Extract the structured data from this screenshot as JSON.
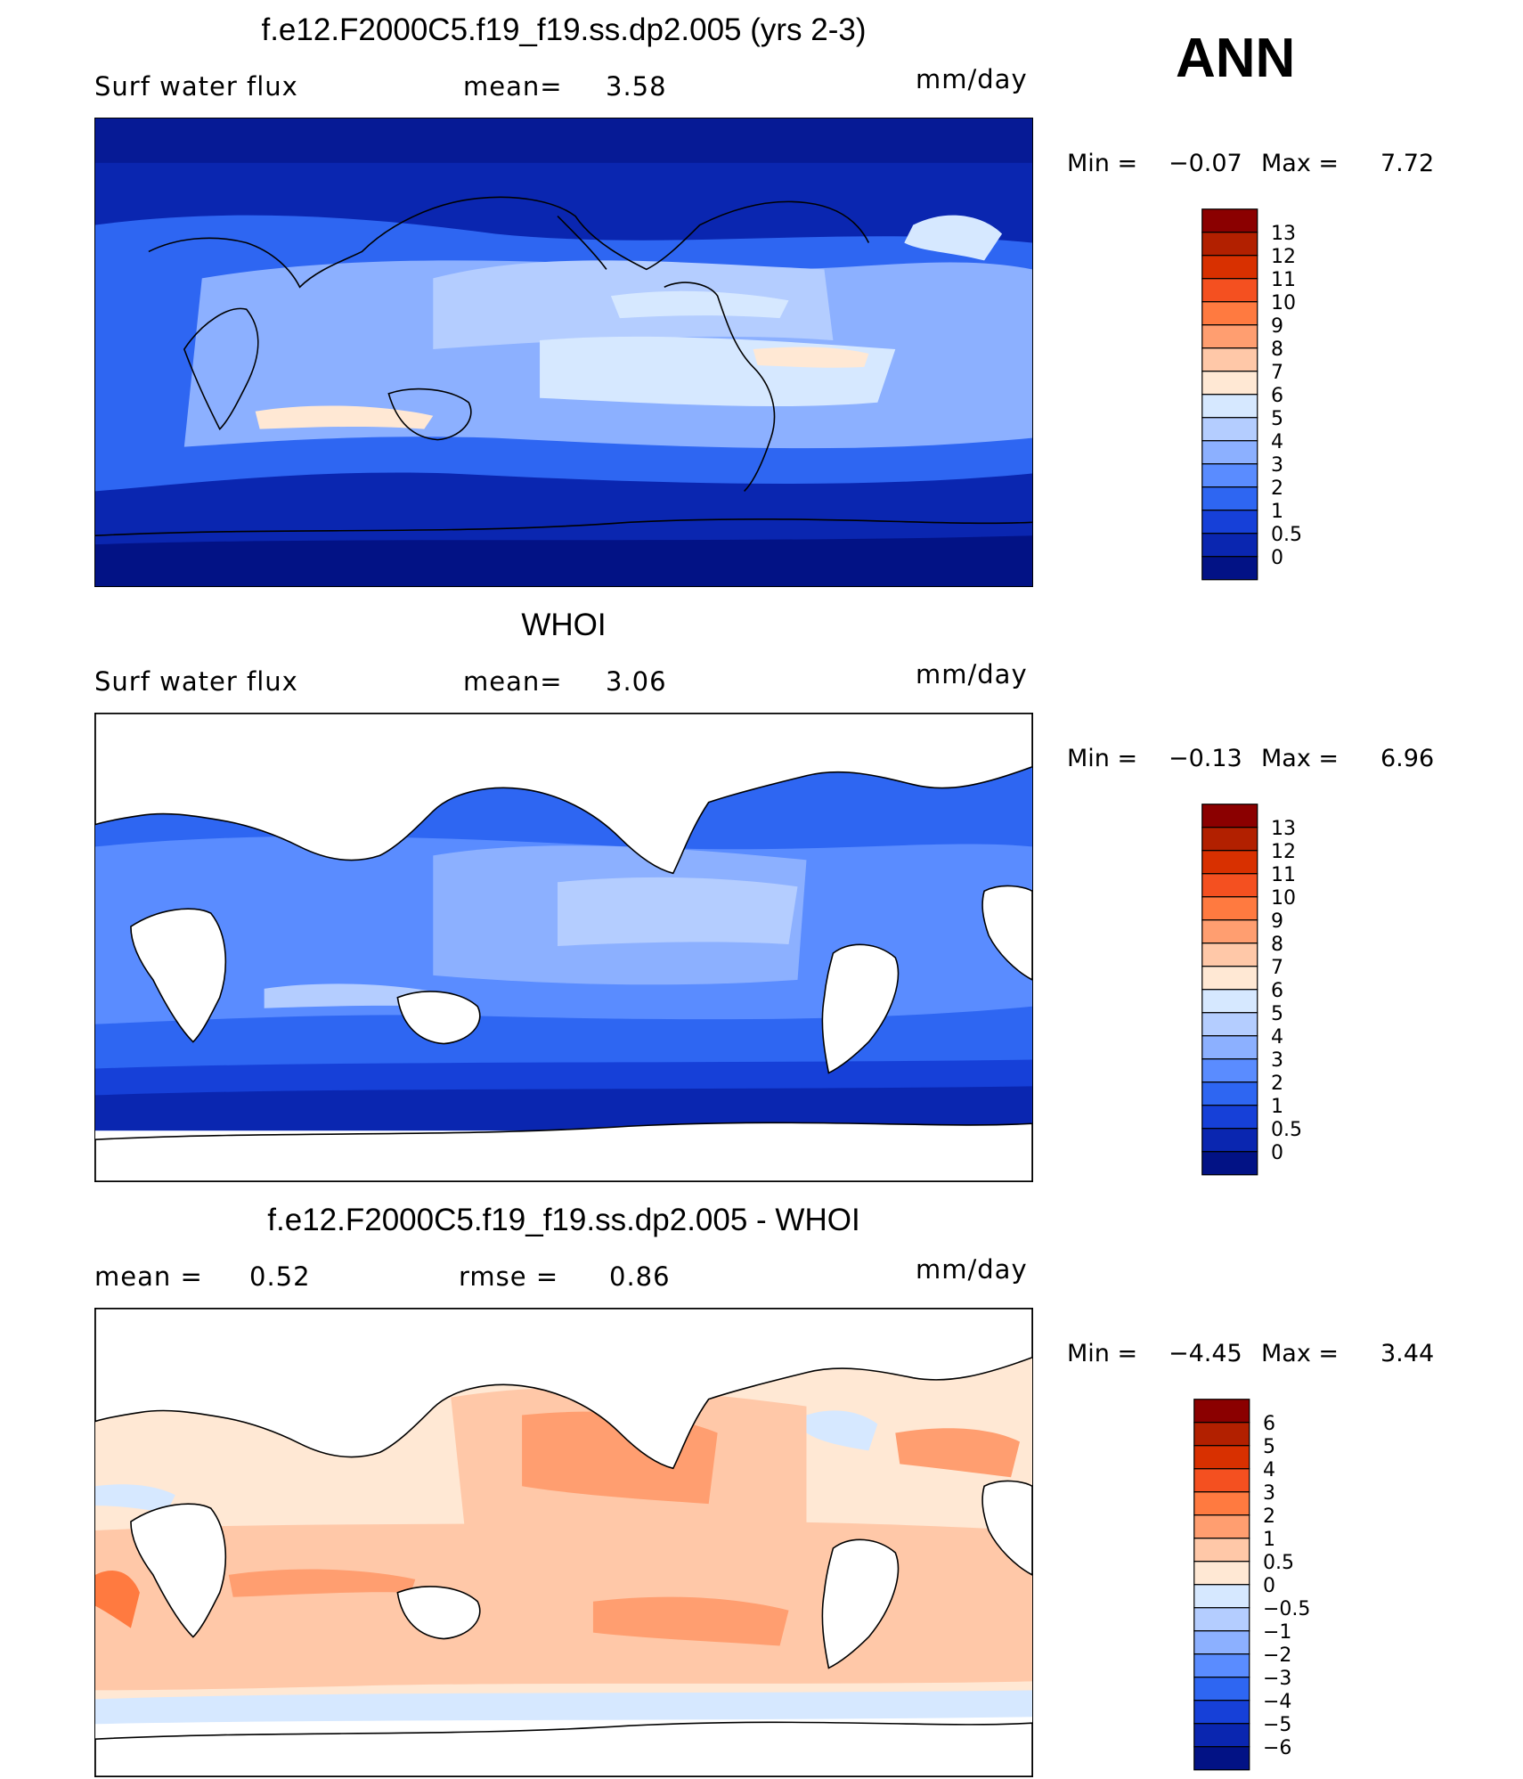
{
  "season": "ANN",
  "panels": [
    {
      "id": "model",
      "title": "f.e12.F2000C5.f19_f19.ss.dp2.005 (yrs 2-3)",
      "left_label": "Surf  water  flux",
      "stat1_label": "mean=",
      "stat1_value": "3.58",
      "stat2_label": "",
      "stat2_value": "",
      "units": "mm/day",
      "min_label": "Min  =",
      "min_value": "−0.07",
      "max_label": "Max  =",
      "max_value": "7.72",
      "colorbar_levels": [
        "13",
        "12",
        "11",
        "10",
        "9",
        "8",
        "7",
        "6",
        "5",
        "4",
        "3",
        "2",
        "1",
        "0.5",
        "0"
      ],
      "colorbar_colors": [
        "#8b0000",
        "#b22000",
        "#d83000",
        "#f45020",
        "#ff7a40",
        "#ff9e70",
        "#ffc8a8",
        "#ffe8d4",
        "#d6e8ff",
        "#b4cdff",
        "#8cb0ff",
        "#5a8cff",
        "#2e66f2",
        "#1640d8",
        "#0a26b0",
        "#021285"
      ]
    },
    {
      "id": "obs",
      "title": "WHOI",
      "left_label": "Surf  water  flux",
      "stat1_label": "mean=",
      "stat1_value": "3.06",
      "stat2_label": "",
      "stat2_value": "",
      "units": "mm/day",
      "min_label": "Min  =",
      "min_value": "−0.13",
      "max_label": "Max  =",
      "max_value": "6.96",
      "colorbar_levels": [
        "13",
        "12",
        "11",
        "10",
        "9",
        "8",
        "7",
        "6",
        "5",
        "4",
        "3",
        "2",
        "1",
        "0.5",
        "0"
      ],
      "colorbar_colors": [
        "#8b0000",
        "#b22000",
        "#d83000",
        "#f45020",
        "#ff7a40",
        "#ff9e70",
        "#ffc8a8",
        "#ffe8d4",
        "#d6e8ff",
        "#b4cdff",
        "#8cb0ff",
        "#5a8cff",
        "#2e66f2",
        "#1640d8",
        "#0a26b0",
        "#021285"
      ]
    },
    {
      "id": "diff",
      "title": "f.e12.F2000C5.f19_f19.ss.dp2.005 - WHOI",
      "left_label": "mean  =",
      "stat1_label": "0.52",
      "stat1_value": "",
      "stat2_label": "rmse  =",
      "stat2_value": "0.86",
      "units": "mm/day",
      "min_label": "Min  =",
      "min_value": "−4.45",
      "max_label": "Max  =",
      "max_value": "3.44",
      "colorbar_levels": [
        "6",
        "5",
        "4",
        "3",
        "2",
        "1",
        "0.5",
        "0",
        "−0.5",
        "−1",
        "−2",
        "−3",
        "−4",
        "−5",
        "−6"
      ],
      "colorbar_colors": [
        "#8b0000",
        "#b22000",
        "#d83000",
        "#f45020",
        "#ff7a40",
        "#ff9e70",
        "#ffc8a8",
        "#ffe8d4",
        "#d6e8ff",
        "#b4cdff",
        "#8cb0ff",
        "#5a8cff",
        "#2e66f2",
        "#1640d8",
        "#0a26b0",
        "#021285"
      ]
    }
  ],
  "fields": {
    "ocean_deep": "#0a26b0",
    "ocean_mid": "#2e66f2",
    "ocean_light": "#8cb0ff",
    "ocean_pale": "#d6e8ff",
    "warm_pale": "#ffe8d4",
    "warm_light": "#ffc8a8",
    "warm_mid": "#ff9e70",
    "cool_pale": "#d6e8ff",
    "land_obs": "#ffffff"
  }
}
